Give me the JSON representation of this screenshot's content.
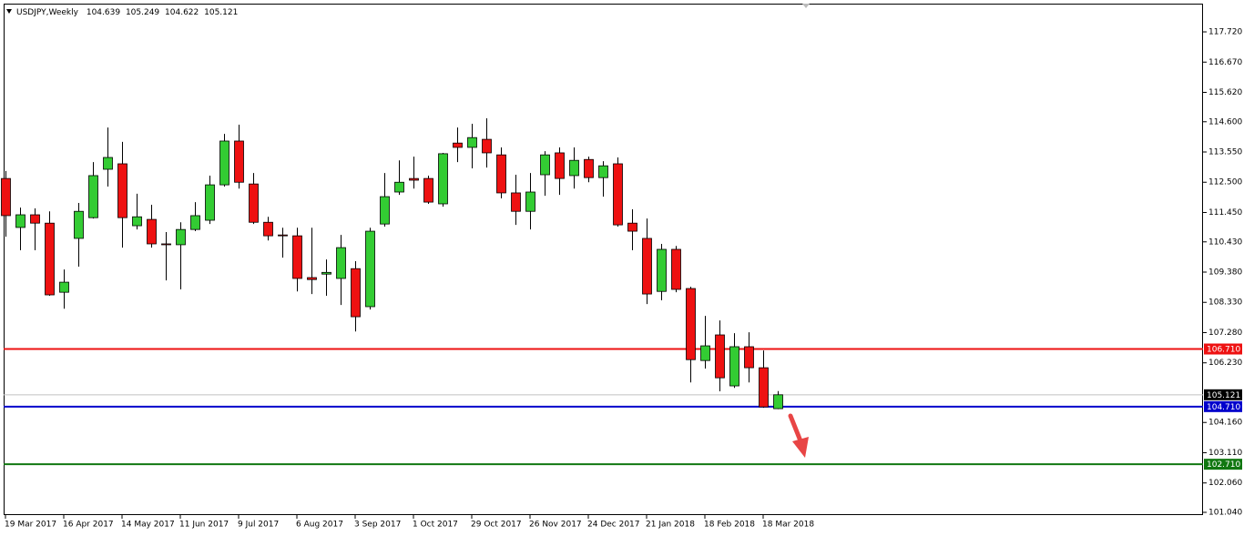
{
  "chart_data": {
    "type": "candlestick",
    "title": "USDJPY,Weekly",
    "categories": [
      "19 Mar 2017",
      null,
      null,
      null,
      "16 Apr 2017",
      null,
      null,
      null,
      "14 May 2017",
      null,
      null,
      null,
      "11 Jun 2017",
      null,
      null,
      null,
      "9 Jul 2017",
      null,
      null,
      null,
      "6 Aug 2017",
      null,
      null,
      null,
      "3 Sep 2017",
      null,
      null,
      null,
      "1 Oct 2017",
      null,
      null,
      null,
      "29 Oct 2017",
      null,
      null,
      null,
      "26 Nov 2017",
      null,
      null,
      null,
      "24 Dec 2017",
      null,
      null,
      null,
      "21 Jan 2018",
      null,
      null,
      null,
      "18 Feb 2018",
      null,
      null,
      null,
      "18 Mar 2018",
      null
    ],
    "open": [
      112.63,
      110.93,
      111.37,
      111.08,
      108.68,
      110.55,
      111.27,
      112.95,
      113.14,
      110.99,
      111.21,
      110.36,
      110.33,
      110.86,
      111.18,
      112.41,
      113.93,
      112.44,
      111.11,
      110.67,
      110.64,
      109.19,
      109.31,
      109.16,
      109.5,
      108.18,
      111.05,
      112.16,
      112.63,
      112.63,
      111.75,
      113.86,
      113.71,
      113.99,
      113.45,
      112.13,
      111.49,
      112.76,
      113.52,
      112.73,
      113.29,
      112.66,
      113.14,
      111.08,
      110.55,
      108.71,
      110.17,
      108.81,
      106.31,
      107.2,
      105.43,
      106.79,
      106.06,
      104.639
    ],
    "high": [
      112.89,
      111.62,
      111.59,
      111.49,
      109.47,
      111.78,
      113.2,
      114.4,
      113.9,
      112.1,
      111.72,
      110.77,
      111.11,
      111.81,
      112.73,
      114.18,
      114.5,
      112.82,
      111.3,
      110.92,
      110.92,
      110.92,
      109.82,
      110.67,
      109.76,
      110.92,
      112.82,
      113.26,
      113.39,
      112.73,
      113.52,
      114.4,
      114.53,
      114.72,
      113.71,
      112.76,
      112.82,
      113.58,
      113.71,
      113.71,
      113.39,
      113.23,
      113.36,
      111.56,
      111.24,
      110.36,
      110.29,
      108.87,
      107.86,
      107.7,
      107.26,
      107.29,
      106.66,
      105.249
    ],
    "low": [
      110.61,
      110.14,
      110.14,
      108.56,
      108.11,
      109.57,
      111.24,
      112.35,
      110.23,
      110.86,
      110.23,
      109.09,
      108.78,
      110.8,
      111.05,
      112.35,
      112.28,
      111.05,
      110.48,
      109.88,
      108.71,
      108.62,
      108.56,
      108.24,
      107.32,
      108.08,
      110.96,
      112.06,
      112.28,
      111.75,
      111.65,
      113.2,
      112.98,
      113.01,
      111.94,
      111.02,
      110.86,
      112.03,
      112.06,
      112.28,
      112.5,
      112.0,
      110.96,
      110.14,
      108.27,
      108.4,
      108.68,
      105.55,
      106.03,
      105.24,
      105.36,
      105.55,
      104.67,
      104.622
    ],
    "close": [
      111.34,
      111.37,
      111.08,
      108.59,
      109.03,
      111.49,
      112.73,
      113.36,
      111.27,
      111.3,
      110.36,
      110.33,
      110.86,
      111.34,
      112.41,
      113.93,
      112.5,
      111.11,
      110.64,
      110.64,
      109.16,
      109.12,
      109.37,
      110.23,
      107.83,
      110.8,
      112.0,
      112.5,
      112.57,
      111.81,
      113.49,
      113.71,
      114.05,
      113.52,
      112.13,
      111.49,
      112.16,
      113.45,
      112.63,
      113.26,
      112.66,
      113.07,
      111.02,
      110.8,
      108.62,
      110.17,
      108.78,
      106.34,
      106.82,
      105.71,
      106.79,
      106.06,
      104.7,
      105.121
    ],
    "up_color": "#33cc33",
    "down_color": "#ee1111",
    "ylim": [
      100.945,
      118.7
    ],
    "yticks": [
      {
        "value": 101.04,
        "label": "101.040"
      },
      {
        "value": 102.06,
        "label": "102.060"
      },
      {
        "value": 103.11,
        "label": "103.110"
      },
      {
        "value": 104.16,
        "label": "104.160"
      },
      {
        "value": 106.23,
        "label": "106.230"
      },
      {
        "value": 107.28,
        "label": "107.280"
      },
      {
        "value": 108.33,
        "label": "108.330"
      },
      {
        "value": 109.38,
        "label": "109.380"
      },
      {
        "value": 110.43,
        "label": "110.430"
      },
      {
        "value": 111.45,
        "label": "111.450"
      },
      {
        "value": 112.5,
        "label": "112.500"
      },
      {
        "value": 113.55,
        "label": "113.550"
      },
      {
        "value": 114.6,
        "label": "114.600"
      },
      {
        "value": 115.62,
        "label": "115.620"
      },
      {
        "value": 116.67,
        "label": "116.670"
      },
      {
        "value": 117.72,
        "label": "117.720"
      }
    ],
    "levels": [
      {
        "value": 106.71,
        "label": "106.710",
        "color": "#ee1111"
      },
      {
        "value": 104.71,
        "label": "104.710",
        "color": "#0000cc"
      },
      {
        "value": 102.71,
        "label": "102.710",
        "color": "#117711"
      }
    ],
    "grid": false
  }
}
